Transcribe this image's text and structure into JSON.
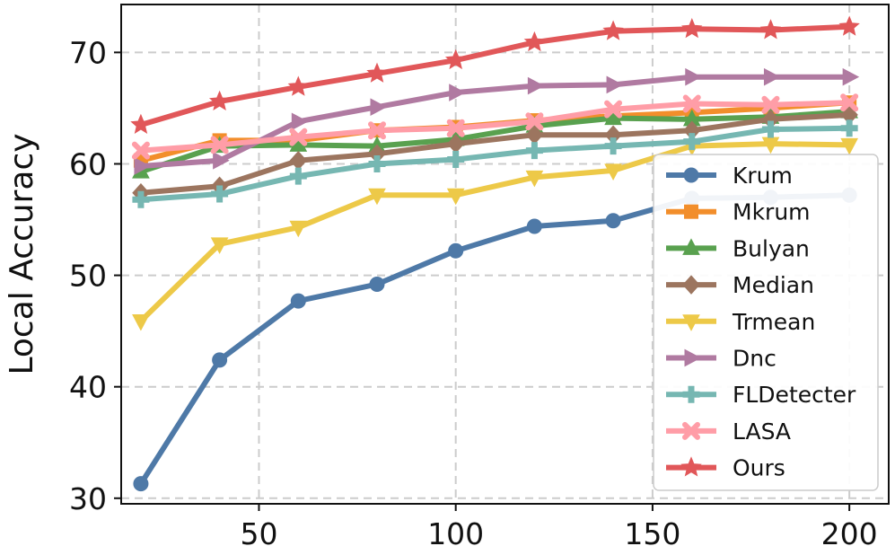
{
  "chart_data": {
    "type": "line",
    "title": "",
    "xlabel": "",
    "ylabel": "Local Accuracy",
    "xlim": [
      15,
      210
    ],
    "ylim": [
      29.5,
      74.3
    ],
    "xticks": [
      50,
      100,
      150,
      200
    ],
    "yticks": [
      30,
      40,
      50,
      60,
      70
    ],
    "grid": true,
    "legend_position": "lower-right",
    "x": [
      20,
      40,
      60,
      80,
      100,
      120,
      140,
      160,
      180,
      200
    ],
    "series": [
      {
        "name": "Krum",
        "color": "#4e79a7",
        "marker": "circle",
        "values": [
          31.3,
          42.4,
          47.7,
          49.2,
          52.2,
          54.4,
          54.9,
          56.9,
          57.0,
          57.2
        ]
      },
      {
        "name": "Mkrum",
        "color": "#f28e2b",
        "marker": "square",
        "values": [
          60.3,
          62.1,
          62.1,
          63.0,
          63.3,
          63.9,
          64.3,
          64.6,
          65.0,
          65.5
        ]
      },
      {
        "name": "Bulyan",
        "color": "#59a14f",
        "marker": "triangle-up",
        "values": [
          59.3,
          61.6,
          61.7,
          61.6,
          62.2,
          63.4,
          64.1,
          64.0,
          64.2,
          64.7
        ]
      },
      {
        "name": "Median",
        "color": "#9c755f",
        "marker": "diamond",
        "values": [
          57.4,
          58.0,
          60.3,
          60.9,
          61.8,
          62.6,
          62.6,
          63.0,
          64.0,
          64.4
        ]
      },
      {
        "name": "Trmean",
        "color": "#edc948",
        "marker": "triangle-down",
        "values": [
          45.9,
          52.8,
          54.3,
          57.2,
          57.2,
          58.8,
          59.4,
          61.6,
          61.8,
          61.7
        ]
      },
      {
        "name": "Dnc",
        "color": "#b07aa1",
        "marker": "triangle-right",
        "values": [
          59.8,
          60.3,
          63.8,
          65.1,
          66.4,
          67.0,
          67.1,
          67.8,
          67.8,
          67.8
        ]
      },
      {
        "name": "FLDetecter",
        "color": "#76b7b2",
        "marker": "plus",
        "values": [
          56.8,
          57.3,
          58.9,
          60.0,
          60.4,
          61.2,
          61.6,
          62.0,
          63.1,
          63.2
        ]
      },
      {
        "name": "LASA",
        "color": "#ff9da7",
        "marker": "x",
        "values": [
          61.2,
          61.7,
          62.4,
          63.0,
          63.2,
          63.8,
          64.9,
          65.4,
          65.3,
          65.5
        ]
      },
      {
        "name": "Ours",
        "color": "#e15759",
        "marker": "star",
        "values": [
          63.5,
          65.6,
          66.9,
          68.1,
          69.3,
          70.9,
          71.9,
          72.1,
          72.0,
          72.3
        ]
      }
    ]
  }
}
